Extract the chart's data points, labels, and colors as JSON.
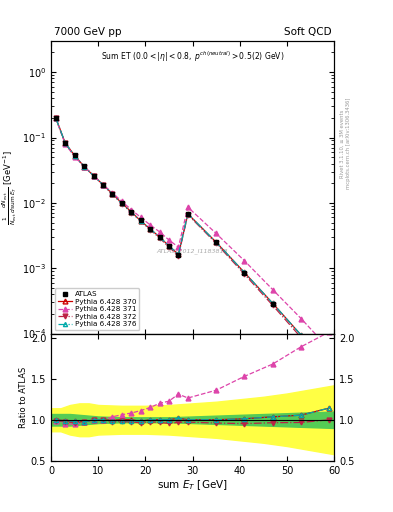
{
  "title_left": "7000 GeV pp",
  "title_right": "Soft QCD",
  "watermark": "ATLAS_2012_I1183818",
  "xlabel": "sum E_{T} [GeV]",
  "ratio_ylabel": "Ratio to ATLAS",
  "right_label": "Rivet 3.1.10, ≥ 3M events",
  "right_label2": "mcplots.cern.ch [arXiv:1306.3436]",
  "xlim": [
    0,
    60
  ],
  "ylim_main": [
    0.0001,
    3
  ],
  "ylim_ratio": [
    0.5,
    2.05
  ],
  "atlas_x": [
    1,
    3,
    5,
    7,
    9,
    11,
    13,
    15,
    17,
    19,
    21,
    23,
    25,
    27,
    29,
    35,
    41,
    47,
    53,
    59
  ],
  "atlas_y": [
    0.2,
    0.083,
    0.054,
    0.037,
    0.026,
    0.019,
    0.0138,
    0.0099,
    0.0073,
    0.0054,
    0.004,
    0.003,
    0.0022,
    0.0016,
    0.0068,
    0.0025,
    0.00085,
    0.00028,
    9e-05,
    2.8e-05
  ],
  "py370_x": [
    1,
    3,
    5,
    7,
    9,
    11,
    13,
    15,
    17,
    19,
    21,
    23,
    25,
    27,
    29,
    35,
    41,
    47,
    53,
    59
  ],
  "py370_y": [
    0.2,
    0.082,
    0.053,
    0.036,
    0.026,
    0.019,
    0.0137,
    0.0099,
    0.0073,
    0.0053,
    0.004,
    0.003,
    0.0022,
    0.00163,
    0.0068,
    0.0025,
    0.00086,
    0.00029,
    9.5e-05,
    3.2e-05
  ],
  "py371_x": [
    1,
    3,
    5,
    7,
    9,
    11,
    13,
    15,
    17,
    19,
    21,
    23,
    25,
    27,
    29,
    35,
    41,
    47,
    53,
    59
  ],
  "py371_y": [
    0.196,
    0.079,
    0.051,
    0.036,
    0.026,
    0.019,
    0.0143,
    0.0105,
    0.0079,
    0.006,
    0.0046,
    0.0036,
    0.0027,
    0.0021,
    0.0086,
    0.0034,
    0.0013,
    0.00047,
    0.00017,
    5.8e-05
  ],
  "py372_x": [
    1,
    3,
    5,
    7,
    9,
    11,
    13,
    15,
    17,
    19,
    21,
    23,
    25,
    27,
    29,
    35,
    41,
    47,
    53,
    59
  ],
  "py372_y": [
    0.198,
    0.081,
    0.052,
    0.036,
    0.026,
    0.019,
    0.0135,
    0.0097,
    0.0071,
    0.0052,
    0.0039,
    0.0029,
    0.0021,
    0.00155,
    0.0066,
    0.0024,
    0.00081,
    0.00027,
    8.7e-05,
    2.8e-05
  ],
  "py376_x": [
    1,
    3,
    5,
    7,
    9,
    11,
    13,
    15,
    17,
    19,
    21,
    23,
    25,
    27,
    29,
    35,
    41,
    47,
    53,
    59
  ],
  "py376_y": [
    0.199,
    0.082,
    0.053,
    0.036,
    0.026,
    0.019,
    0.0136,
    0.0098,
    0.0072,
    0.0053,
    0.004,
    0.003,
    0.0022,
    0.00163,
    0.0068,
    0.0025,
    0.00086,
    0.00029,
    9.5e-05,
    3.2e-05
  ],
  "green_band_x": [
    0,
    2,
    4,
    6,
    8,
    10,
    15,
    20,
    25,
    30,
    35,
    40,
    45,
    50,
    55,
    60
  ],
  "green_band_lo": [
    0.93,
    0.93,
    0.93,
    0.94,
    0.95,
    0.96,
    0.97,
    0.97,
    0.97,
    0.96,
    0.95,
    0.94,
    0.93,
    0.92,
    0.91,
    0.9
  ],
  "green_band_hi": [
    1.07,
    1.07,
    1.07,
    1.06,
    1.05,
    1.04,
    1.03,
    1.03,
    1.03,
    1.04,
    1.05,
    1.06,
    1.07,
    1.08,
    1.09,
    1.1
  ],
  "yellow_band_x": [
    0,
    2,
    4,
    6,
    8,
    10,
    15,
    20,
    25,
    30,
    35,
    40,
    45,
    50,
    55,
    60
  ],
  "yellow_band_lo": [
    0.86,
    0.86,
    0.82,
    0.8,
    0.8,
    0.82,
    0.83,
    0.83,
    0.82,
    0.8,
    0.78,
    0.75,
    0.72,
    0.68,
    0.63,
    0.58
  ],
  "yellow_band_hi": [
    1.14,
    1.14,
    1.18,
    1.2,
    1.2,
    1.18,
    1.17,
    1.17,
    1.18,
    1.2,
    1.22,
    1.25,
    1.28,
    1.32,
    1.37,
    1.42
  ],
  "ratio_py370": [
    1.0,
    0.988,
    0.981,
    0.973,
    0.999,
    1.0,
    0.993,
    1.0,
    1.0,
    0.981,
    1.0,
    1.0,
    1.0,
    1.019,
    1.0,
    1.0,
    1.012,
    1.036,
    1.056,
    1.143
  ],
  "ratio_py371": [
    0.98,
    0.952,
    0.944,
    0.973,
    0.999,
    1.0,
    1.036,
    1.061,
    1.082,
    1.111,
    1.15,
    1.2,
    1.227,
    1.313,
    1.265,
    1.36,
    1.529,
    1.679,
    1.889,
    2.071
  ],
  "ratio_py372": [
    0.99,
    0.976,
    0.963,
    0.973,
    0.999,
    1.0,
    0.978,
    0.98,
    0.973,
    0.963,
    0.975,
    0.967,
    0.955,
    0.969,
    0.971,
    0.96,
    0.953,
    0.964,
    0.967,
    1.0
  ],
  "ratio_py376": [
    0.995,
    0.988,
    0.981,
    0.973,
    0.999,
    1.0,
    0.986,
    0.99,
    0.986,
    0.981,
    1.0,
    1.0,
    1.0,
    1.019,
    1.0,
    1.0,
    1.012,
    1.036,
    1.056,
    1.143
  ],
  "color_370": "#cc0000",
  "color_371": "#dd44aa",
  "color_372": "#bb2244",
  "color_376": "#00aaaa",
  "color_atlas": "black"
}
